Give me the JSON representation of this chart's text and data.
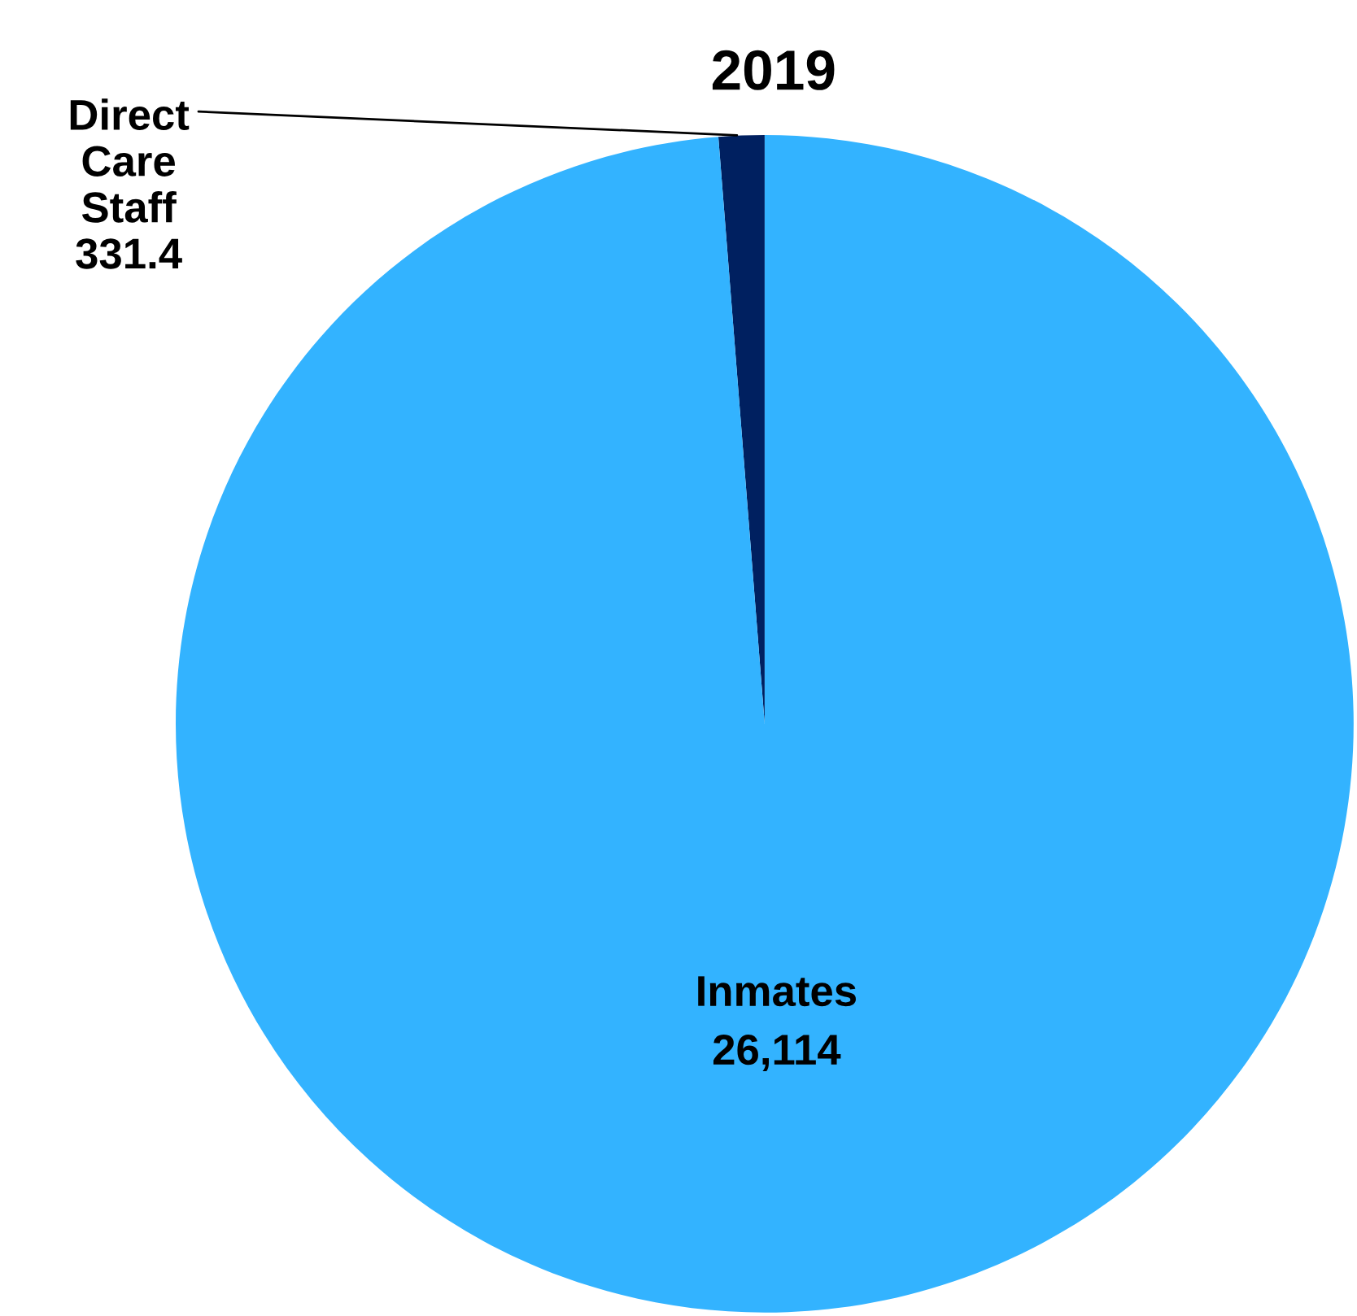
{
  "chart_data": {
    "type": "pie",
    "title": "2019",
    "categories": [
      "Direct Care Staff",
      "Inmates"
    ],
    "values": [
      331.4,
      26114
    ],
    "value_labels": [
      "331.4",
      "26,114"
    ],
    "colors": [
      "#002060",
      "#33b3ff"
    ],
    "legend": false
  }
}
